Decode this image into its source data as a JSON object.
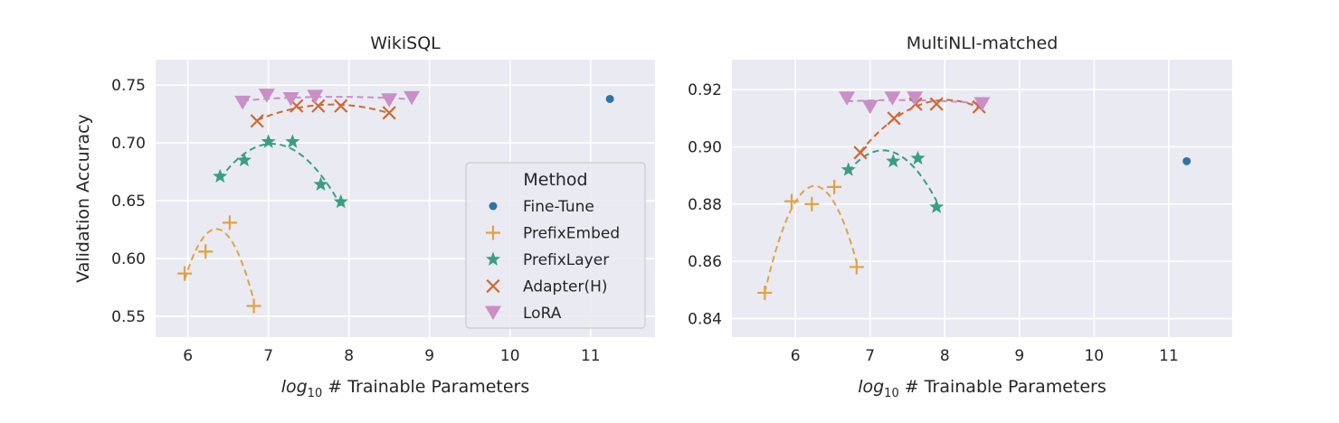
{
  "chart_data": [
    {
      "type": "scatter",
      "title": "WikiSQL",
      "xlabel": "log10 # Trainable Parameters",
      "ylabel": "Validation Accuracy",
      "xlim": [
        5.6,
        11.8
      ],
      "ylim": [
        0.532,
        0.772
      ],
      "xticks": [
        6,
        7,
        8,
        9,
        10,
        11
      ],
      "yticks": [
        0.55,
        0.6,
        0.65,
        0.7,
        0.75
      ],
      "ytick_labels": [
        "0.55",
        "0.60",
        "0.65",
        "0.70",
        "0.75"
      ],
      "grid": true,
      "legend": "right-center",
      "series": [
        {
          "name": "Fine-Tune",
          "marker": "circle",
          "color": "#3274a1",
          "points": [
            [
              11.24,
              0.738
            ]
          ]
        },
        {
          "name": "PrefixEmbed",
          "marker": "plus",
          "color": "#e1a244",
          "points": [
            [
              5.96,
              0.587
            ],
            [
              6.22,
              0.606
            ],
            [
              6.52,
              0.631
            ],
            [
              6.82,
              0.559
            ]
          ]
        },
        {
          "name": "PrefixLayer",
          "marker": "star",
          "color": "#3a9e82",
          "points": [
            [
              6.4,
              0.671
            ],
            [
              6.7,
              0.685
            ],
            [
              7.0,
              0.701
            ],
            [
              7.3,
              0.701
            ],
            [
              7.65,
              0.664
            ],
            [
              7.9,
              0.649
            ]
          ]
        },
        {
          "name": "Adapter(H)",
          "marker": "x",
          "color": "#cc6a33",
          "points": [
            [
              6.86,
              0.719
            ],
            [
              7.35,
              0.732
            ],
            [
              7.62,
              0.732
            ],
            [
              7.9,
              0.732
            ],
            [
              8.5,
              0.726
            ]
          ]
        },
        {
          "name": "LoRA",
          "marker": "triangle-down",
          "color": "#c98fc6",
          "points": [
            [
              6.68,
              0.735
            ],
            [
              6.98,
              0.741
            ],
            [
              7.28,
              0.738
            ],
            [
              7.58,
              0.74
            ],
            [
              8.5,
              0.737
            ],
            [
              8.78,
              0.739
            ]
          ]
        }
      ]
    },
    {
      "type": "scatter",
      "title": "MultiNLI-matched",
      "xlabel": "log10 # Trainable Parameters",
      "ylabel": "",
      "xlim": [
        5.15,
        11.85
      ],
      "ylim": [
        0.8335,
        0.9305
      ],
      "xticks": [
        6,
        7,
        8,
        9,
        10,
        11
      ],
      "yticks": [
        0.84,
        0.86,
        0.88,
        0.9,
        0.92
      ],
      "ytick_labels": [
        "0.84",
        "0.86",
        "0.88",
        "0.90",
        "0.92"
      ],
      "grid": true,
      "series": [
        {
          "name": "Fine-Tune",
          "marker": "circle",
          "color": "#3274a1",
          "points": [
            [
              11.24,
              0.895
            ]
          ]
        },
        {
          "name": "PrefixEmbed",
          "marker": "plus",
          "color": "#e1a244",
          "points": [
            [
              5.59,
              0.849
            ],
            [
              5.95,
              0.881
            ],
            [
              6.22,
              0.88
            ],
            [
              6.52,
              0.886
            ],
            [
              6.82,
              0.858
            ]
          ]
        },
        {
          "name": "PrefixLayer",
          "marker": "star",
          "color": "#3a9e82",
          "points": [
            [
              6.71,
              0.892
            ],
            [
              7.31,
              0.895
            ],
            [
              7.64,
              0.896
            ],
            [
              7.89,
              0.879
            ]
          ]
        },
        {
          "name": "Adapter(H)",
          "marker": "x",
          "color": "#cc6a33",
          "points": [
            [
              6.87,
              0.898
            ],
            [
              7.32,
              0.91
            ],
            [
              7.61,
              0.915
            ],
            [
              7.89,
              0.915
            ],
            [
              8.46,
              0.914
            ]
          ]
        },
        {
          "name": "LoRA",
          "marker": "triangle-down",
          "color": "#c98fc6",
          "points": [
            [
              6.69,
              0.917
            ],
            [
              7.0,
              0.914
            ],
            [
              7.3,
              0.917
            ],
            [
              7.6,
              0.917
            ],
            [
              8.5,
              0.915
            ]
          ]
        }
      ]
    }
  ],
  "legend": {
    "title": "Method",
    "items": [
      "Fine-Tune",
      "PrefixEmbed",
      "PrefixLayer",
      "Adapter(H)",
      "LoRA"
    ]
  },
  "colors": {
    "plot_background": "#eaeaf2",
    "grid": "#ffffff"
  }
}
